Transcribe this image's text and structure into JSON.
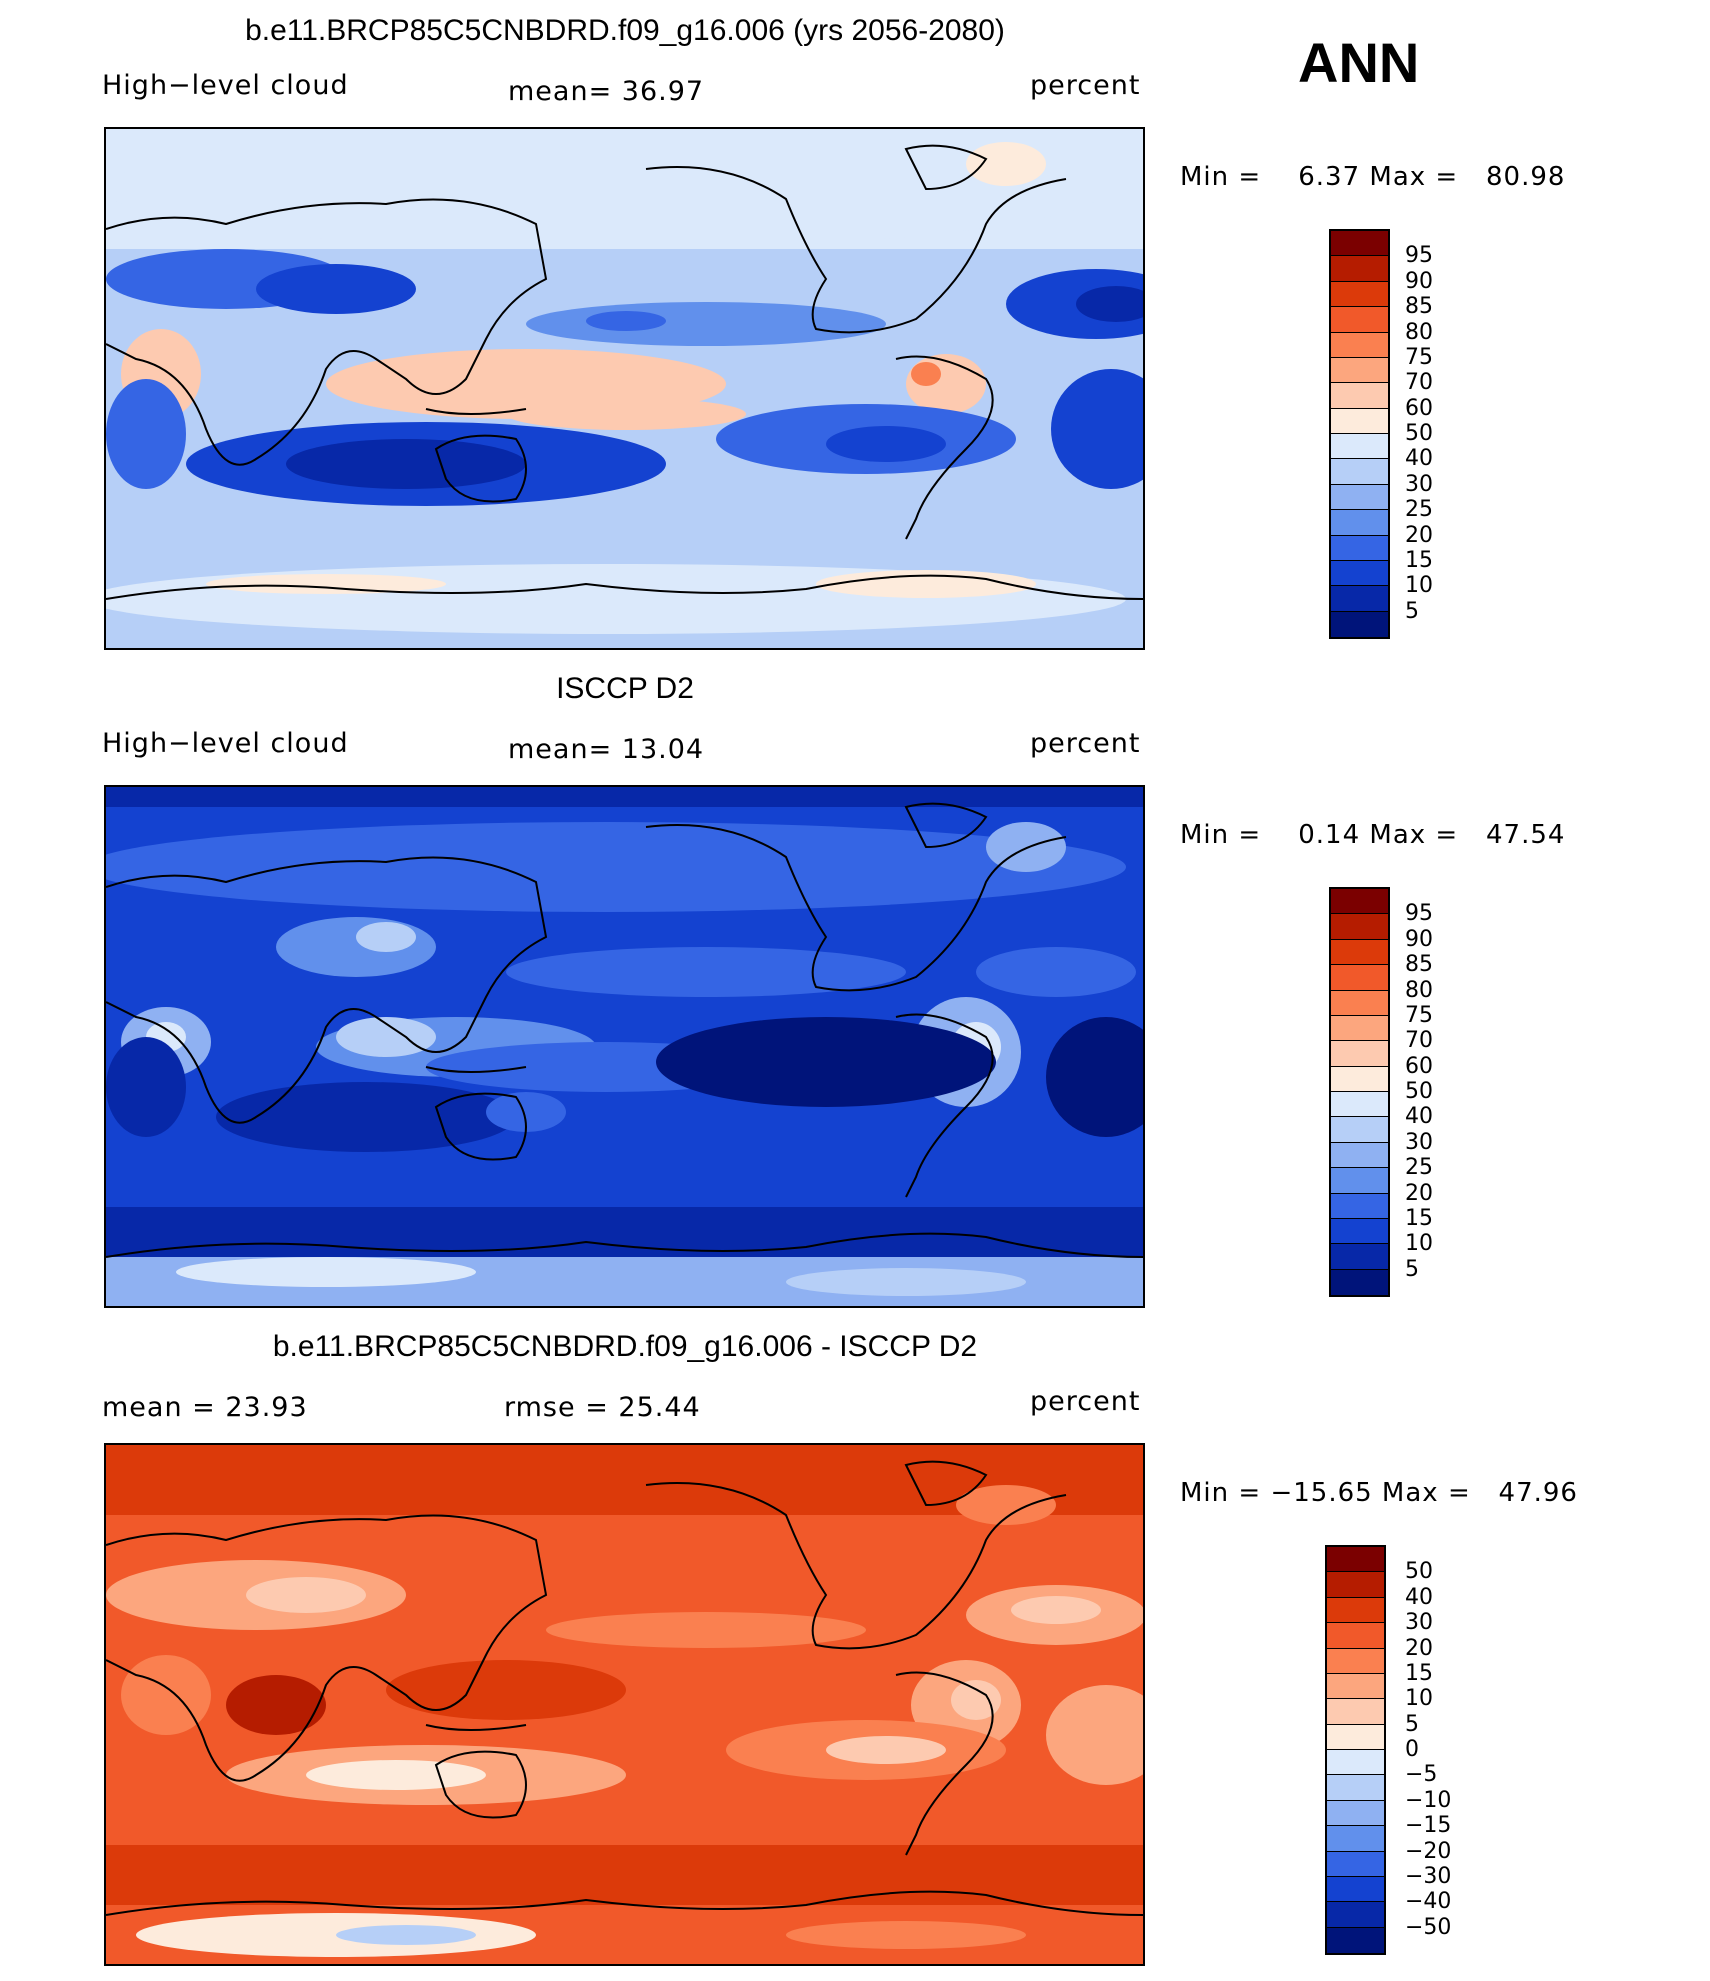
{
  "header": {
    "season": "ANN"
  },
  "panels": [
    {
      "title": "b.e11.BRCP85C5CNBDRD.f09_g16.006 (yrs 2056-2080)",
      "left_label": "High−level cloud",
      "center_label": "mean=   36.97",
      "right_label": "percent",
      "minmax": "Min =    6.37 Max =   80.98",
      "colorbar": {
        "labels": [
          "95",
          "90",
          "85",
          "80",
          "75",
          "70",
          "60",
          "50",
          "40",
          "30",
          "25",
          "20",
          "15",
          "10",
          "5"
        ],
        "colors": [
          "#7b0000",
          "#b51c00",
          "#dc3a0a",
          "#f1592a",
          "#fa8050",
          "#fca67e",
          "#fdcab0",
          "#fdebdc",
          "#dbe9fb",
          "#b6cff7",
          "#8fb1f2",
          "#6190ec",
          "#3565e4",
          "#1442d0",
          "#0728a8",
          "#00147a"
        ]
      },
      "map_palette": "model"
    },
    {
      "title": "ISCCP D2",
      "left_label": "High−level cloud",
      "center_label": "mean=   13.04",
      "right_label": "percent",
      "minmax": "Min =    0.14 Max =   47.54",
      "colorbar": {
        "labels": [
          "95",
          "90",
          "85",
          "80",
          "75",
          "70",
          "60",
          "50",
          "40",
          "30",
          "25",
          "20",
          "15",
          "10",
          "5"
        ],
        "colors": [
          "#7b0000",
          "#b51c00",
          "#dc3a0a",
          "#f1592a",
          "#fa8050",
          "#fca67e",
          "#fdcab0",
          "#fdebdc",
          "#dbe9fb",
          "#b6cff7",
          "#8fb1f2",
          "#6190ec",
          "#3565e4",
          "#1442d0",
          "#0728a8",
          "#00147a"
        ]
      },
      "map_palette": "obs"
    },
    {
      "title": "b.e11.BRCP85C5CNBDRD.f09_g16.006 - ISCCP D2",
      "left_label": "mean =    23.93",
      "center_label": "rmse =   25.44",
      "right_label": "percent",
      "minmax": "Min = −15.65 Max =   47.96",
      "colorbar": {
        "labels": [
          "50",
          "40",
          "30",
          "20",
          "15",
          "10",
          "5",
          "0",
          "−5",
          "−10",
          "−15",
          "−20",
          "−30",
          "−40",
          "−50"
        ],
        "colors": [
          "#7b0000",
          "#b51c00",
          "#dc3a0a",
          "#f1592a",
          "#fa8050",
          "#fca67e",
          "#fdcab0",
          "#fdebdc",
          "#dbe9fb",
          "#b6cff7",
          "#8fb1f2",
          "#6190ec",
          "#3565e4",
          "#1442d0",
          "#0728a8",
          "#00147a"
        ]
      },
      "map_palette": "diff"
    }
  ]
}
